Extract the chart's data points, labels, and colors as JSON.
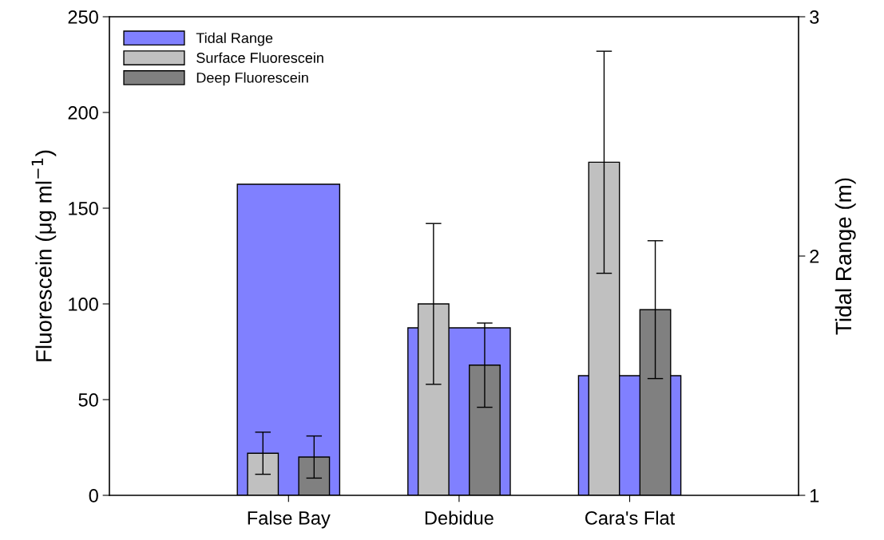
{
  "chart_data": {
    "type": "bar",
    "categories": [
      "False Bay",
      "Debidue",
      "Cara's Flat"
    ],
    "ylabel": "Fluorescein (μg ml$^{−1}$)",
    "y2label": "Tidal Range (m)",
    "ylim": [
      0,
      250
    ],
    "yticks": [
      0,
      50,
      100,
      150,
      200,
      250
    ],
    "y2lim": [
      1,
      3
    ],
    "y2ticks": [
      1,
      2,
      3
    ],
    "series": [
      {
        "name": "Tidal Range",
        "color": "#8080ff",
        "axis": "y2",
        "values": [
          2.3,
          1.7,
          1.5
        ]
      },
      {
        "name": "Surface Fluorescein",
        "color": "#c0c0c0",
        "values": [
          22,
          100,
          174
        ],
        "errors": [
          11,
          42,
          58
        ]
      },
      {
        "name": "Deep Fluorescein",
        "color": "#808080",
        "values": [
          20,
          68,
          97
        ],
        "errors": [
          11,
          22,
          36
        ]
      }
    ],
    "legend": "top left",
    "grid": false
  }
}
